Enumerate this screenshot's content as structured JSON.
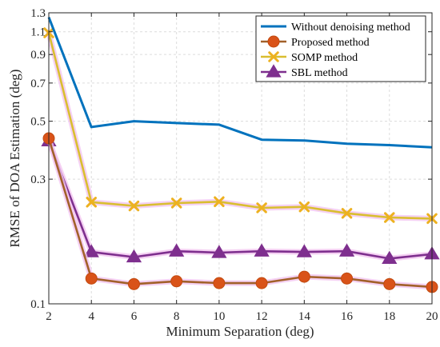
{
  "chart_data": {
    "type": "line",
    "xlabel": "Minimum Separation (deg)",
    "ylabel": "RMSE of DOA Estimation (deg)",
    "xlim": [
      2,
      20
    ],
    "ylim": [
      0.1,
      1.3
    ],
    "yscale": "log",
    "grid": true,
    "legend_position": "top-right",
    "x": [
      2,
      4,
      6,
      8,
      10,
      12,
      14,
      16,
      18,
      20
    ],
    "xticks": [
      "2",
      "4",
      "6",
      "8",
      "10",
      "12",
      "14",
      "16",
      "18",
      "20"
    ],
    "yticks": [
      {
        "value": 0.1,
        "label": "0.1"
      },
      {
        "value": 0.3,
        "label": "0.3"
      },
      {
        "value": 0.5,
        "label": "0.5"
      },
      {
        "value": 0.7,
        "label": "0.7"
      },
      {
        "value": 0.9,
        "label": "0.9"
      },
      {
        "value": 1.1,
        "label": "1.1"
      },
      {
        "value": 1.3,
        "label": "1.3"
      }
    ],
    "series": [
      {
        "name": "Without denoising method",
        "color": "#0072BD",
        "marker": "none",
        "values": [
          1.25,
          0.475,
          0.5,
          0.492,
          0.485,
          0.425,
          0.422,
          0.41,
          0.405,
          0.397
        ]
      },
      {
        "name": "Proposed method",
        "color": "#D95319",
        "marker": "circle",
        "line_color": "#A2612A",
        "values": [
          0.43,
          0.125,
          0.119,
          0.122,
          0.12,
          0.12,
          0.127,
          0.125,
          0.119,
          0.116
        ]
      },
      {
        "name": "SOMP method",
        "color": "#EDB120",
        "marker": "x",
        "line_color": "#D9BE30",
        "values": [
          1.09,
          0.245,
          0.237,
          0.243,
          0.246,
          0.233,
          0.235,
          0.222,
          0.214,
          0.212
        ]
      },
      {
        "name": "SBL method",
        "color": "#7E2F8E",
        "marker": "triangle",
        "values": [
          0.42,
          0.158,
          0.151,
          0.159,
          0.157,
          0.159,
          0.158,
          0.159,
          0.149,
          0.155
        ]
      }
    ]
  }
}
